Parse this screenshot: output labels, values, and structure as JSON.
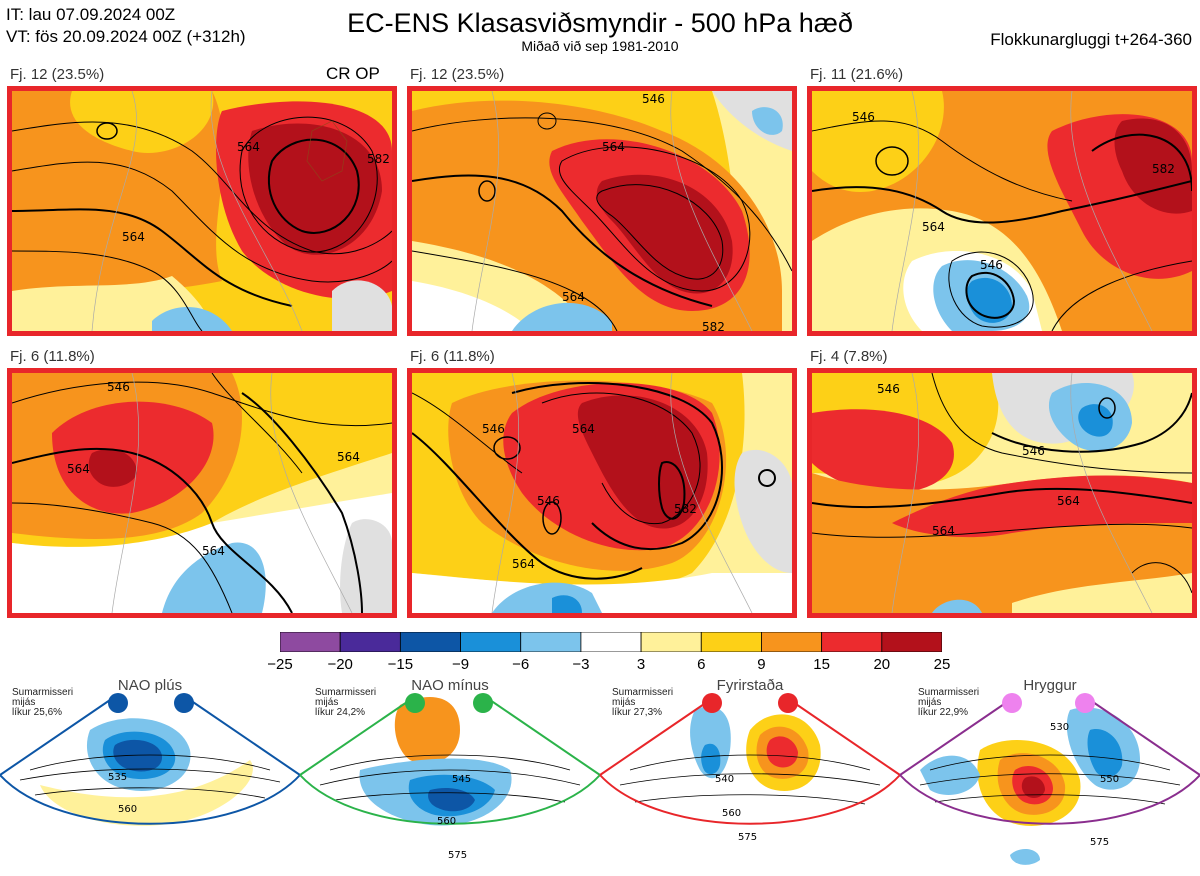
{
  "header": {
    "it_line": "IT: lau 07.09.2024 00Z",
    "vt_line": "VT: fös 20.09.2024 00Z  (+312h)",
    "title": "EC-ENS Klasasviðsmyndir - 500 hPa hæð",
    "subtitle": "Miðað við sep 1981-2010",
    "window": "Flokkunargluggi t+264-360"
  },
  "panels": [
    {
      "label": "Fj. 12 (23.5%)",
      "tag": "CR OP",
      "contours": [
        "564",
        "582",
        "564"
      ]
    },
    {
      "label": "Fj. 12 (23.5%)",
      "tag": "",
      "contours": [
        "546",
        "564",
        "564",
        "582"
      ]
    },
    {
      "label": "Fj. 11 (21.6%)",
      "tag": "",
      "contours": [
        "546",
        "564",
        "582",
        "546"
      ]
    },
    {
      "label": "Fj. 6 (11.8%)",
      "tag": "",
      "contours": [
        "546",
        "564",
        "564",
        "564"
      ]
    },
    {
      "label": "Fj. 6 (11.8%)",
      "tag": "",
      "contours": [
        "546",
        "546",
        "564",
        "564",
        "582"
      ]
    },
    {
      "label": "Fj. 4 (7.8%)",
      "tag": "",
      "contours": [
        "546",
        "546",
        "564",
        "564"
      ]
    }
  ],
  "colorbar": {
    "ticks": [
      "−25",
      "−20",
      "−15",
      "−9",
      "−6",
      "−3",
      "3",
      "6",
      "9",
      "15",
      "20",
      "25"
    ],
    "colors": [
      "#8e4aa0",
      "#4a2a9a",
      "#0d56a6",
      "#1a90d9",
      "#7cc4ec",
      "#ffffff",
      "#fff19a",
      "#fdd017",
      "#f7941d",
      "#ec2b2e",
      "#b3111b"
    ]
  },
  "regimes": [
    {
      "name": "NAO plús",
      "note": [
        "Sumarmisseri",
        "mijás",
        "líkur 25,6%"
      ],
      "color": "#0d56a6",
      "contours": [
        "535",
        "560"
      ]
    },
    {
      "name": "NAO mínus",
      "note": [
        "Sumarmisseri",
        "mijás",
        "líkur 24,2%"
      ],
      "color": "#2bb34a",
      "contours": [
        "545",
        "560",
        "575"
      ]
    },
    {
      "name": "Fyrirstaða",
      "note": [
        "Sumarmisseri",
        "mijás",
        "líkur 27,3%"
      ],
      "color": "#e8262a",
      "contours": [
        "540",
        "560",
        "575"
      ]
    },
    {
      "name": "Hryggur",
      "note": [
        "Sumarmisseri",
        "mijás",
        "líkur 22,9%"
      ],
      "color": "#8a2e8e",
      "contours": [
        "530",
        "550",
        "575"
      ]
    }
  ]
}
